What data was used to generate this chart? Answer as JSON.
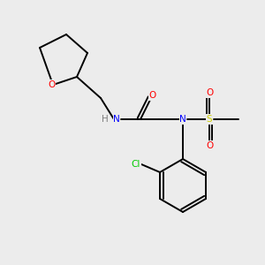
{
  "background_color": "#ececec",
  "figsize": [
    3.0,
    3.0
  ],
  "dpi": 100,
  "colors": {
    "bond": "#000000",
    "N": "#0000ff",
    "O": "#ff0000",
    "Cl": "#00cc00",
    "S": "#cccc00",
    "C": "#000000",
    "H": "#808080"
  },
  "font_size": 7.5,
  "bond_lw": 1.4
}
